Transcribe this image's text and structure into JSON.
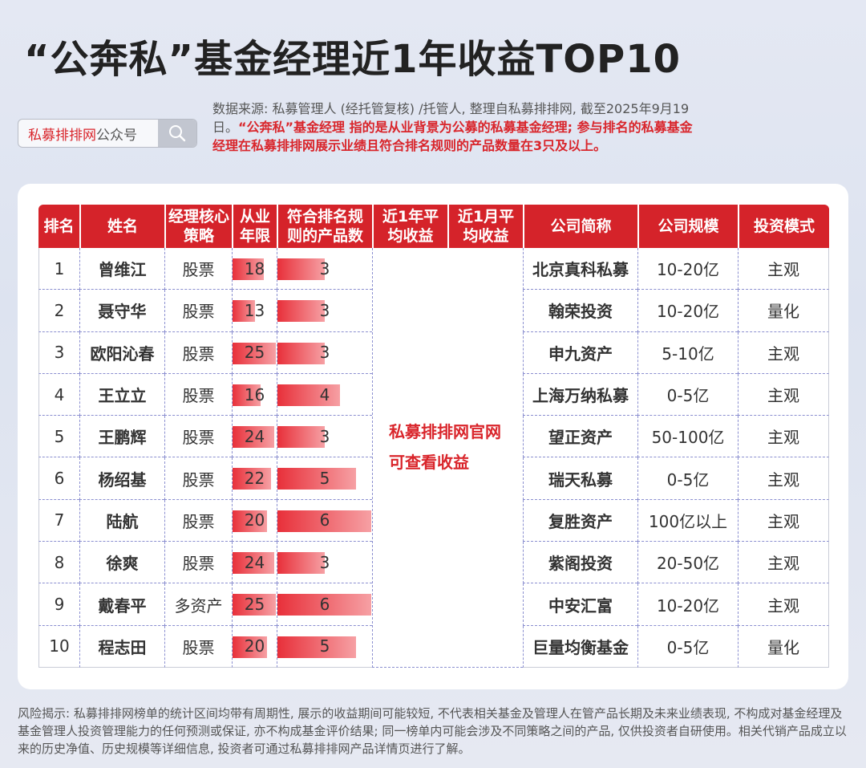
{
  "title": "“公奔私”基金经理近1年收益TOP10",
  "search": {
    "brand": "私募排排网",
    "suffix": "公众号"
  },
  "source": {
    "plain": "数据来源: 私募管理人 (经托管复核) /托管人, 整理自私募排排网, 截至2025年9月19日。",
    "highlight": "“公奔私”基金经理 指的是从业背景为公募的私募基金经理; 参与排名的私募基金经理在私募排排网展示业绩且符合排名规则的产品数量在3只及以上。"
  },
  "table": {
    "headers": [
      "排名",
      "姓名",
      "经理核心策略",
      "从业年限",
      "符合排名规则的产品数",
      "近1年平均收益",
      "近1月平均收益",
      "公司简称",
      "公司规模",
      "投资模式"
    ],
    "merged_note_line1": "私募排排网官网",
    "merged_note_line2": "可查看收益",
    "rows": [
      {
        "rank": "1",
        "name": "曾维江",
        "strategy": "股票",
        "years": 18,
        "products": 3,
        "company": "北京真科私募",
        "scale": "10-20亿",
        "mode": "主观"
      },
      {
        "rank": "2",
        "name": "聂守华",
        "strategy": "股票",
        "years": 13,
        "products": 3,
        "company": "翰荣投资",
        "scale": "10-20亿",
        "mode": "量化"
      },
      {
        "rank": "3",
        "name": "欧阳沁春",
        "strategy": "股票",
        "years": 25,
        "products": 3,
        "company": "申九资产",
        "scale": "5-10亿",
        "mode": "主观"
      },
      {
        "rank": "4",
        "name": "王立立",
        "strategy": "股票",
        "years": 16,
        "products": 4,
        "company": "上海万纳私募",
        "scale": "0-5亿",
        "mode": "主观"
      },
      {
        "rank": "5",
        "name": "王鹏辉",
        "strategy": "股票",
        "years": 24,
        "products": 3,
        "company": "望正资产",
        "scale": "50-100亿",
        "mode": "主观"
      },
      {
        "rank": "6",
        "name": "杨绍基",
        "strategy": "股票",
        "years": 22,
        "products": 5,
        "company": "瑞天私募",
        "scale": "0-5亿",
        "mode": "主观"
      },
      {
        "rank": "7",
        "name": "陆航",
        "strategy": "股票",
        "years": 20,
        "products": 6,
        "company": "复胜资产",
        "scale": "100亿以上",
        "mode": "主观"
      },
      {
        "rank": "8",
        "name": "徐爽",
        "strategy": "股票",
        "years": 24,
        "products": 3,
        "company": "紫阁投资",
        "scale": "20-50亿",
        "mode": "主观"
      },
      {
        "rank": "9",
        "name": "戴春平",
        "strategy": "多资产",
        "years": 25,
        "products": 6,
        "company": "中安汇富",
        "scale": "10-20亿",
        "mode": "主观"
      },
      {
        "rank": "10",
        "name": "程志田",
        "strategy": "股票",
        "years": 20,
        "products": 5,
        "company": "巨量均衡基金",
        "scale": "0-5亿",
        "mode": "量化"
      }
    ]
  },
  "risk": "风险揭示: 私募排排网榜单的统计区间均带有周期性, 展示的收益期间可能较短, 不代表相关基金及管理人在管产品长期及未来业绩表现, 不构成对基金经理及基金管理人投资管理能力的任何预测或保证, 亦不构成基金评价结果; 同一榜单内可能会涉及不同策略之间的产品, 仅供投资者自研使用。相关代销产品成立以来的历史净值、历史规模等详细信息, 投资者可通过私募排排网产品详情页进行了解。",
  "colors": {
    "accent": "#d5232a",
    "bar_start": "#e8303a",
    "bar_end": "#f6a0a4"
  }
}
